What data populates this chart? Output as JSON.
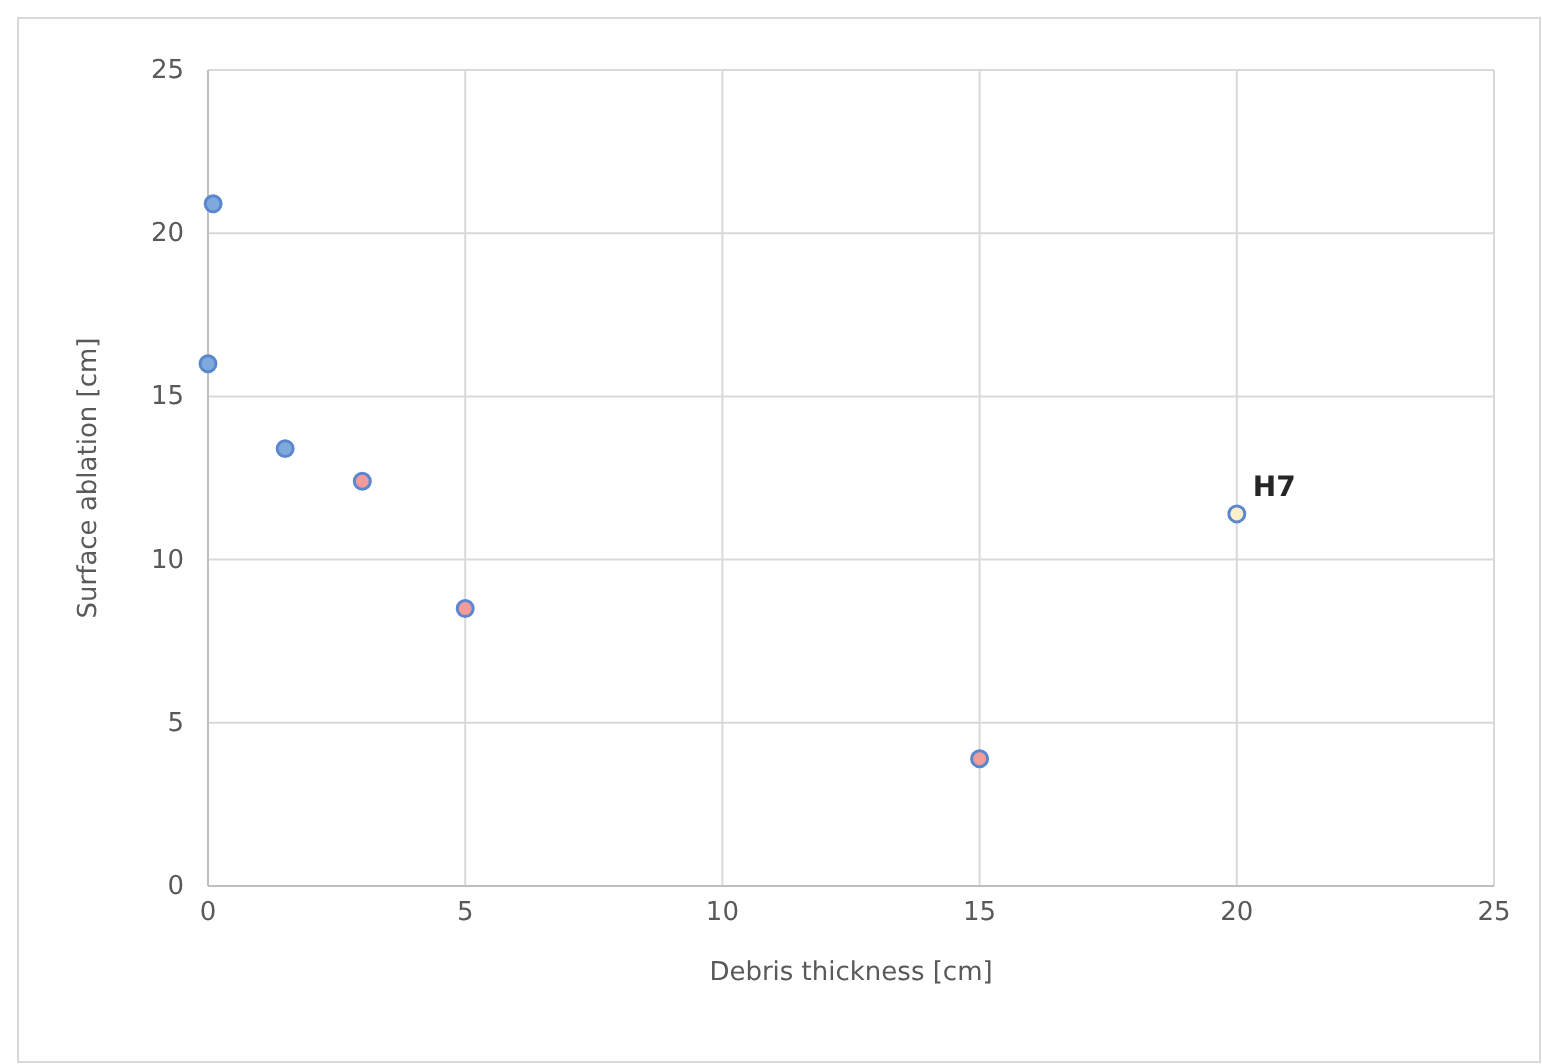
{
  "chart_data": {
    "type": "scatter",
    "xlabel": "Debris thickness [cm]",
    "ylabel": "Surface ablation [cm]",
    "xlim": [
      0,
      25
    ],
    "xticks": [
      0,
      5,
      10,
      15,
      20,
      25
    ],
    "ylim": [
      0,
      25
    ],
    "yticks": [
      0,
      5,
      10,
      15,
      20,
      25
    ],
    "grid": true,
    "marker": "circle",
    "series": [
      {
        "color": "#7fa8dd",
        "x": [
          0,
          0.1,
          1.5
        ],
        "values": [
          16,
          20.9,
          13.4
        ]
      },
      {
        "color": "#f29b9b",
        "x": [
          3,
          5,
          15
        ],
        "values": [
          12.4,
          8.5,
          3.9
        ]
      },
      {
        "color": "#fdf0c8",
        "x": [
          20
        ],
        "values": [
          11.4
        ]
      }
    ],
    "annotations": [
      {
        "text": "H7",
        "x": 20,
        "y": 11.4
      }
    ]
  }
}
